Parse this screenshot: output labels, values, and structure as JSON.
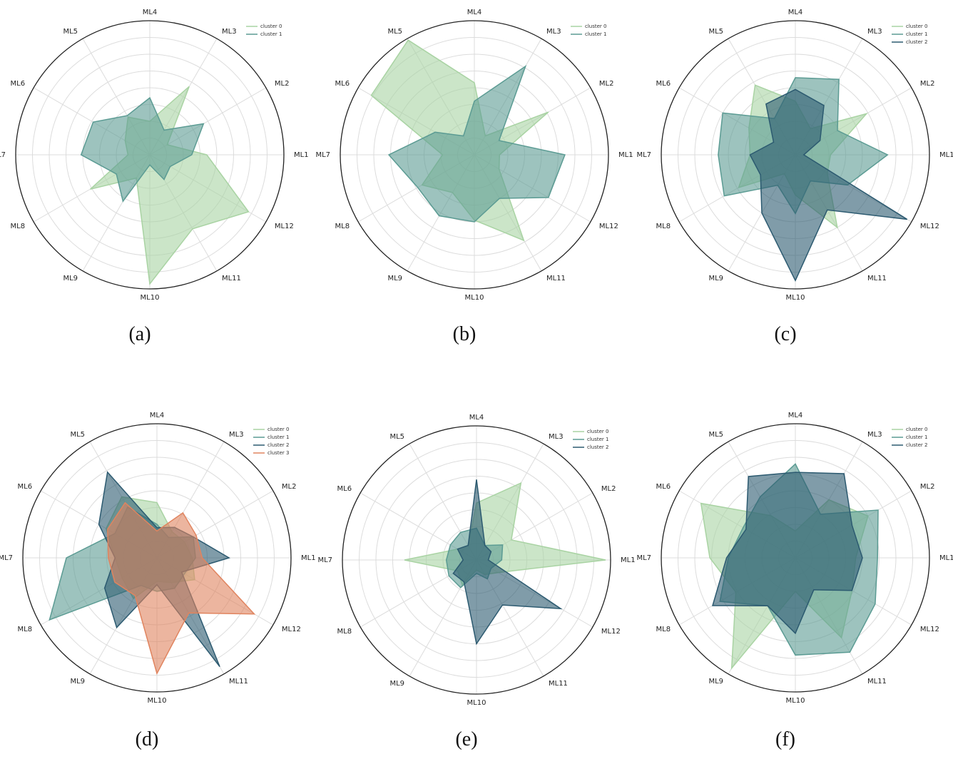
{
  "chart_data": [
    {
      "type": "radar",
      "caption": "(a)",
      "categories": [
        "ML1",
        "ML2",
        "ML3",
        "ML4",
        "ML5",
        "ML6",
        "ML7",
        "ML8",
        "ML9",
        "ML10",
        "ML11",
        "ML12"
      ],
      "series": [
        {
          "name": "cluster 0",
          "color": "#a9d3a3",
          "values": [
            3.4,
            1.2,
            4.7,
            2.0,
            2.6,
            1.7,
            1.3,
            4.1,
            1.6,
            7.7,
            5.1,
            6.8
          ]
        },
        {
          "name": "cluster 1",
          "color": "#5b9b93",
          "values": [
            2.5,
            3.7,
            1.7,
            3.4,
            2.7,
            3.9,
            4.1,
            2.3,
            3.2,
            0.6,
            1.7,
            1.4
          ]
        }
      ],
      "ylim": [
        0,
        8
      ],
      "yticks": [
        1,
        2,
        3,
        4,
        5,
        6,
        7
      ],
      "grid": true,
      "legend": "upper right"
    },
    {
      "type": "radar",
      "caption": "(b)",
      "categories": [
        "ML1",
        "ML2",
        "ML3",
        "ML4",
        "ML5",
        "ML6",
        "ML7",
        "ML8",
        "ML9",
        "ML10",
        "ML11",
        "ML12"
      ],
      "series": [
        {
          "name": "cluster 0",
          "color": "#a9d3a3",
          "values": [
            1.5,
            5.1,
            1.3,
            4.3,
            7.9,
            7.1,
            1.9,
            3.6,
            2.6,
            3.9,
            5.9,
            1.7
          ]
        },
        {
          "name": "cluster 1",
          "color": "#5b9b93",
          "values": [
            5.4,
            1.7,
            6.1,
            3.2,
            1.3,
            2.7,
            5.1,
            3.9,
            4.2,
            4.0,
            3.0,
            5.1
          ]
        }
      ],
      "ylim": [
        0,
        8
      ],
      "yticks": [
        1,
        2,
        3,
        4,
        5,
        6,
        7
      ],
      "grid": true,
      "legend": "upper right"
    },
    {
      "type": "radar",
      "caption": "(c)",
      "categories": [
        "ML1",
        "ML2",
        "ML3",
        "ML4",
        "ML5",
        "ML6",
        "ML7",
        "ML8",
        "ML9",
        "ML10",
        "ML11",
        "ML12"
      ],
      "series": [
        {
          "name": "cluster 0",
          "color": "#a9d3a3",
          "values": [
            2.1,
            4.9,
            1.8,
            3.2,
            4.8,
            3.2,
            2.7,
            3.9,
            1.3,
            2.4,
            5.0,
            2.2
          ]
        },
        {
          "name": "cluster 1",
          "color": "#5b9b93",
          "values": [
            5.5,
            2.9,
            5.2,
            4.6,
            2.5,
            5.0,
            4.6,
            4.9,
            2.1,
            3.5,
            1.8,
            3.6
          ]
        },
        {
          "name": "cluster 2",
          "color": "#2c5a70",
          "values": [
            0.5,
            1.7,
            3.4,
            3.9,
            3.5,
            1.5,
            2.7,
            2.4,
            4.0,
            7.5,
            3.8,
            7.7
          ]
        }
      ],
      "ylim": [
        0,
        8
      ],
      "yticks": [
        1,
        2,
        3,
        4,
        5,
        6,
        7
      ],
      "grid": true,
      "legend": "upper right"
    },
    {
      "type": "radar",
      "caption": "(d)",
      "categories": [
        "ML1",
        "ML2",
        "ML3",
        "ML4",
        "ML5",
        "ML6",
        "ML7",
        "ML8",
        "ML9",
        "ML10",
        "ML11",
        "ML12"
      ],
      "series": [
        {
          "name": "cluster 0",
          "color": "#a9d3a3",
          "values": [
            2.1,
            1.9,
            1.8,
            3.3,
            4.2,
            3.5,
            2.5,
            2.4,
            2.8,
            1.4,
            1.7,
            2.6
          ]
        },
        {
          "name": "cluster 1",
          "color": "#5b9b93",
          "values": [
            2.3,
            2.5,
            1.4,
            2.0,
            3.5,
            2.9,
            5.4,
            7.4,
            1.9,
            2.0,
            2.1,
            1.9
          ]
        },
        {
          "name": "cluster 2",
          "color": "#2c5a70",
          "values": [
            4.3,
            2.5,
            2.1,
            1.8,
            5.9,
            4.0,
            2.5,
            3.6,
            4.8,
            1.6,
            7.5,
            1.7
          ]
        },
        {
          "name": "cluster 3",
          "color": "#e0845f",
          "values": [
            2.7,
            2.7,
            3.1,
            1.6,
            3.8,
            3.4,
            2.9,
            2.9,
            2.6,
            6.9,
            3.8,
            6.7
          ]
        }
      ],
      "ylim": [
        0,
        8
      ],
      "yticks": [
        1,
        2,
        3,
        4,
        5,
        6,
        7
      ],
      "grid": true,
      "legend": "upper right"
    },
    {
      "type": "radar",
      "caption": "(e)",
      "categories": [
        "ML1",
        "ML2",
        "ML3",
        "ML4",
        "ML5",
        "ML6",
        "ML7",
        "ML8",
        "ML9",
        "ML10",
        "ML11",
        "ML12"
      ],
      "series": [
        {
          "name": "cluster 0",
          "color": "#a9d3a3",
          "values": [
            7.7,
            2.4,
            5.3,
            3.4,
            1.0,
            1.3,
            4.3,
            1.3,
            1.7,
            0.6,
            1.0,
            1.5
          ]
        },
        {
          "name": "cluster 1",
          "color": "#5b9b93",
          "values": [
            1.5,
            1.8,
            1.0,
            1.9,
            1.9,
            1.8,
            1.8,
            1.9,
            1.9,
            0.8,
            1.3,
            1.0
          ]
        },
        {
          "name": "cluster 2",
          "color": "#2c5a70",
          "values": [
            0.7,
            1.0,
            1.0,
            4.8,
            1.0,
            1.3,
            0.8,
            1.6,
            1.5,
            5.0,
            3.1,
            5.8
          ]
        }
      ],
      "ylim": [
        0,
        8
      ],
      "yticks": [
        1,
        2,
        3,
        4,
        5,
        6,
        7
      ],
      "grid": true,
      "legend": "upper right"
    },
    {
      "type": "radar",
      "caption": "(f)",
      "categories": [
        "ML1",
        "ML2",
        "ML3",
        "ML4",
        "ML5",
        "ML6",
        "ML7",
        "ML8",
        "ML9",
        "ML10",
        "ML11",
        "ML12"
      ],
      "series": [
        {
          "name": "cluster 0",
          "color": "#a9d3a3",
          "values": [
            3.6,
            5.0,
            4.0,
            1.6,
            2.9,
            6.5,
            5.1,
            4.1,
            7.6,
            2.0,
            5.5,
            3.9
          ]
        },
        {
          "name": "cluster 1",
          "color": "#5b9b93",
          "values": [
            4.9,
            5.7,
            3.0,
            5.6,
            4.2,
            3.6,
            4.0,
            5.2,
            3.3,
            5.8,
            6.5,
            5.5
          ]
        },
        {
          "name": "cluster 2",
          "color": "#2c5a70",
          "values": [
            4.0,
            3.9,
            5.8,
            5.1,
            5.6,
            3.4,
            4.1,
            5.7,
            3.3,
            4.5,
            2.2,
            3.9
          ]
        }
      ],
      "ylim": [
        0,
        8
      ],
      "yticks": [
        1,
        2,
        3,
        4,
        5,
        6,
        7
      ],
      "grid": true,
      "legend": "upper right"
    }
  ]
}
